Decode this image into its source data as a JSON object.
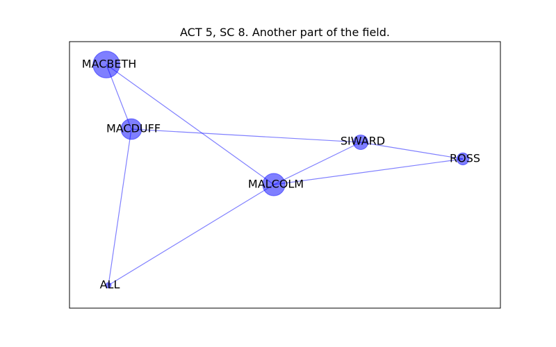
{
  "chart_data": {
    "type": "network",
    "title": "ACT 5, SC 8. Another part of the field.",
    "node_color": "#0000ff",
    "edge_color": "#0000ff",
    "nodes": [
      {
        "id": "MACBETH",
        "label": "MACBETH",
        "weight": 5
      },
      {
        "id": "MACDUFF",
        "label": "MACDUFF",
        "weight": 3
      },
      {
        "id": "SIWARD",
        "label": "SIWARD",
        "weight": 1.5
      },
      {
        "id": "ROSS",
        "label": "ROSS",
        "weight": 1
      },
      {
        "id": "MALCOLM",
        "label": "MALCOLM",
        "weight": 3.5
      },
      {
        "id": "ALL",
        "label": "ALL",
        "weight": 0.2
      }
    ],
    "edges": [
      [
        "MACBETH",
        "MACDUFF"
      ],
      [
        "MACBETH",
        "MALCOLM"
      ],
      [
        "MACDUFF",
        "SIWARD"
      ],
      [
        "MACDUFF",
        "ALL"
      ],
      [
        "SIWARD",
        "ROSS"
      ],
      [
        "SIWARD",
        "MALCOLM"
      ],
      [
        "ROSS",
        "MALCOLM"
      ],
      [
        "MALCOLM",
        "ALL"
      ]
    ]
  }
}
